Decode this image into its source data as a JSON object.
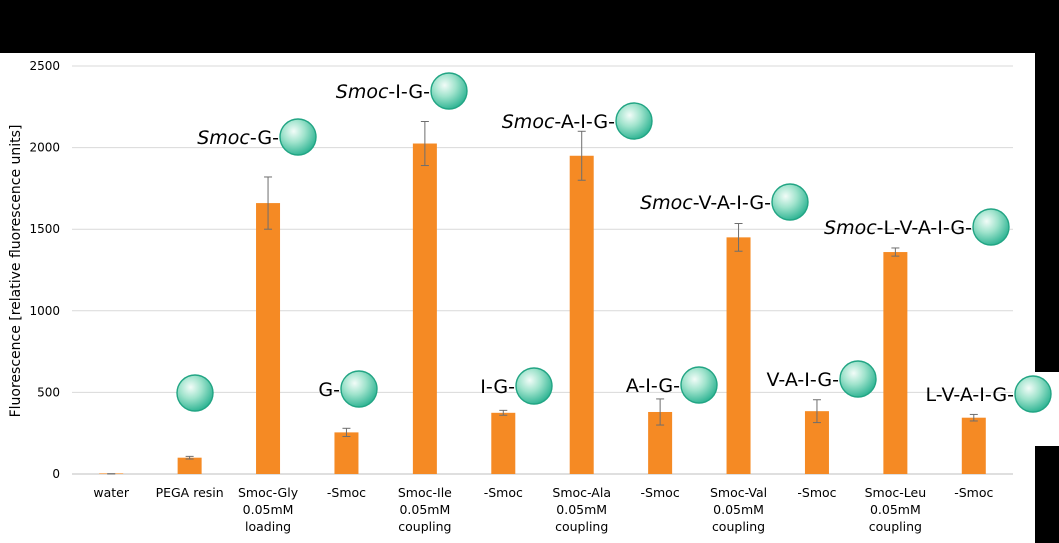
{
  "chart_data": {
    "type": "bar",
    "title": "",
    "xlabel": "",
    "ylabel": "Fluorescence [relative fluorescence units]",
    "ylim": [
      0,
      2500
    ],
    "yticks": [
      0,
      500,
      1000,
      1500,
      2000,
      2500
    ],
    "grid": true,
    "categories": [
      [
        "water"
      ],
      [
        "PEGA resin"
      ],
      [
        "Smoc-Gly",
        "0.05mM",
        "loading"
      ],
      [
        "-Smoc"
      ],
      [
        "Smoc-Ile",
        "0.05mM",
        "coupling"
      ],
      [
        "-Smoc"
      ],
      [
        "Smoc-Ala",
        "0.05mM",
        "coupling"
      ],
      [
        "-Smoc"
      ],
      [
        "Smoc-Val",
        "0.05mM",
        "coupling"
      ],
      [
        "-Smoc"
      ],
      [
        "Smoc-Leu",
        "0.05mM",
        "coupling"
      ],
      [
        "-Smoc"
      ]
    ],
    "values": [
      0,
      100,
      1660,
      255,
      2025,
      375,
      1950,
      380,
      1450,
      385,
      1360,
      345
    ],
    "errors": [
      2,
      8,
      160,
      25,
      135,
      15,
      150,
      80,
      85,
      70,
      25,
      20
    ],
    "bar_color": "#F58A24",
    "annotations": [
      {
        "italic": "",
        "text": ""
      },
      {
        "italic": "",
        "text": ""
      },
      {
        "italic": "Smoc",
        "text": "-G-"
      },
      {
        "italic": "",
        "text": "G-"
      },
      {
        "italic": "Smoc",
        "text": "-I-G-"
      },
      {
        "italic": "",
        "text": "I-G-"
      },
      {
        "italic": "Smoc",
        "text": "-A-I-G-"
      },
      {
        "italic": "",
        "text": "A-I-G-"
      },
      {
        "italic": "Smoc",
        "text": "-V-A-I-G-"
      },
      {
        "italic": "",
        "text": "V-A-I-G-"
      },
      {
        "italic": "Smoc",
        "text": "-L-V-A-I-G-"
      },
      {
        "italic": "",
        "text": "L-V-A-I-G-"
      }
    ]
  }
}
